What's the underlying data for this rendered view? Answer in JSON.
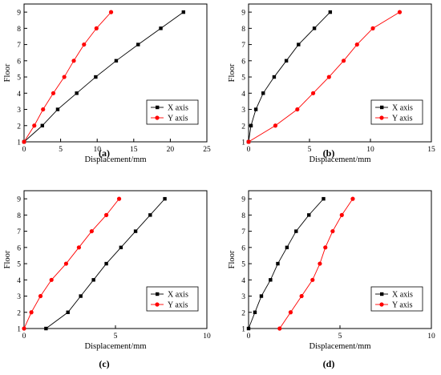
{
  "chart_data": [
    {
      "panel": "a",
      "type": "line",
      "xlabel": "Displacement/mm",
      "ylabel": "Floor",
      "xlim": [
        0,
        25
      ],
      "ylim": [
        1,
        9.5
      ],
      "xticks": [
        0,
        5,
        10,
        15,
        20,
        25
      ],
      "yticks": [
        1,
        2,
        3,
        4,
        5,
        6,
        7,
        8,
        9
      ],
      "legend_position": "bottom-right",
      "series": [
        {
          "name": "X axis",
          "marker": "square",
          "color": "#000000",
          "x": [
            0,
            2.5,
            4.6,
            7.2,
            9.8,
            12.6,
            15.6,
            18.7,
            21.8
          ],
          "y": [
            1,
            2,
            3,
            4,
            5,
            6,
            7,
            8,
            9
          ]
        },
        {
          "name": "Y axis",
          "marker": "circle",
          "color": "#ff0000",
          "x": [
            0,
            1.4,
            2.6,
            4.0,
            5.5,
            6.8,
            8.2,
            9.9,
            11.9
          ],
          "y": [
            1,
            2,
            3,
            4,
            5,
            6,
            7,
            8,
            9
          ]
        }
      ]
    },
    {
      "panel": "b",
      "type": "line",
      "xlabel": "Displacement/mm",
      "ylabel": "Floor",
      "xlim": [
        0,
        15
      ],
      "ylim": [
        1,
        9.5
      ],
      "xticks": [
        0,
        5,
        10,
        15
      ],
      "yticks": [
        1,
        2,
        3,
        4,
        5,
        6,
        7,
        8,
        9
      ],
      "legend_position": "bottom-right",
      "series": [
        {
          "name": "X axis",
          "marker": "square",
          "color": "#000000",
          "x": [
            0,
            0.2,
            0.6,
            1.2,
            2.1,
            3.1,
            4.1,
            5.4,
            6.7
          ],
          "y": [
            1,
            2,
            3,
            4,
            5,
            6,
            7,
            8,
            9
          ]
        },
        {
          "name": "Y axis",
          "marker": "circle",
          "color": "#ff0000",
          "x": [
            0,
            2.2,
            4.0,
            5.3,
            6.6,
            7.8,
            8.9,
            10.2,
            12.4
          ],
          "y": [
            1,
            2,
            3,
            4,
            5,
            6,
            7,
            8,
            9
          ]
        }
      ]
    },
    {
      "panel": "c",
      "type": "line",
      "xlabel": "Displacement/mm",
      "ylabel": "Floor",
      "xlim": [
        0,
        10
      ],
      "ylim": [
        1,
        9.5
      ],
      "xticks": [
        0,
        5,
        10
      ],
      "yticks": [
        1,
        2,
        3,
        4,
        5,
        6,
        7,
        8,
        9
      ],
      "legend_position": "bottom-right",
      "series": [
        {
          "name": "X axis",
          "marker": "square",
          "color": "#000000",
          "x": [
            1.2,
            2.4,
            3.1,
            3.8,
            4.5,
            5.3,
            6.1,
            6.9,
            7.7
          ],
          "y": [
            1,
            2,
            3,
            4,
            5,
            6,
            7,
            8,
            9
          ]
        },
        {
          "name": "Y axis",
          "marker": "circle",
          "color": "#ff0000",
          "x": [
            0,
            0.4,
            0.9,
            1.5,
            2.3,
            3.0,
            3.7,
            4.5,
            5.2
          ],
          "y": [
            1,
            2,
            3,
            4,
            5,
            6,
            7,
            8,
            9
          ]
        }
      ]
    },
    {
      "panel": "d",
      "type": "line",
      "xlabel": "Displacement/mm",
      "ylabel": "Floor",
      "xlim": [
        0,
        10
      ],
      "ylim": [
        1,
        9.5
      ],
      "xticks": [
        0,
        5,
        10
      ],
      "yticks": [
        1,
        2,
        3,
        4,
        5,
        6,
        7,
        8,
        9
      ],
      "legend_position": "bottom-right",
      "series": [
        {
          "name": "X axis",
          "marker": "square",
          "color": "#000000",
          "x": [
            0,
            0.35,
            0.7,
            1.2,
            1.6,
            2.1,
            2.6,
            3.3,
            4.1
          ],
          "y": [
            1,
            2,
            3,
            4,
            5,
            6,
            7,
            8,
            9
          ]
        },
        {
          "name": "Y axis",
          "marker": "circle",
          "color": "#ff0000",
          "x": [
            1.7,
            2.3,
            2.9,
            3.5,
            3.9,
            4.2,
            4.6,
            5.1,
            5.7
          ],
          "y": [
            1,
            2,
            3,
            4,
            5,
            6,
            7,
            8,
            9
          ]
        }
      ]
    }
  ],
  "captions": [
    "(a)",
    "(b)",
    "(c)",
    "(d)"
  ]
}
